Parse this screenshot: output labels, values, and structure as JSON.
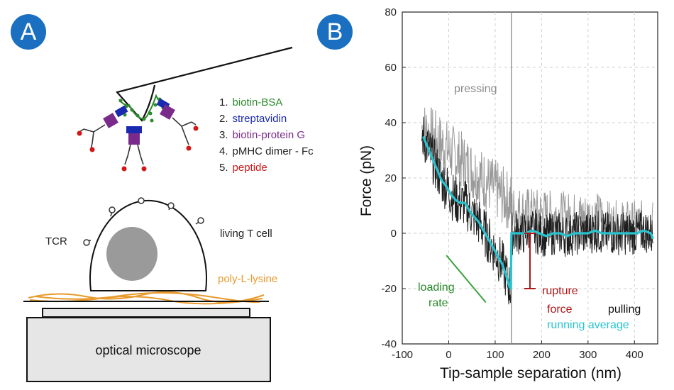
{
  "panels": {
    "a": "A",
    "b": "B"
  },
  "legend": {
    "items": [
      {
        "num": "1.",
        "text": "biotin-BSA",
        "color": "#2b8a2b"
      },
      {
        "num": "2.",
        "text": "streptavidin",
        "color": "#1a2ab0"
      },
      {
        "num": "3.",
        "text": "biotin-protein G",
        "color": "#7a2a8a"
      },
      {
        "num": "4.",
        "text": "pMHC dimer - Fc",
        "color": "#222222"
      },
      {
        "num": "5.",
        "text": "peptide",
        "color": "#d01818"
      }
    ]
  },
  "labels": {
    "tcr": "TCR",
    "cell": "living T cell",
    "polylysine": "poly-L-lysine",
    "microscope": "optical microscope"
  },
  "colors": {
    "badge": "#1a6fc0",
    "polylysine": "#e89a2c",
    "nucleus": "#9a9a9a",
    "running_average": "#27c4d0",
    "loading_rate": "#3aa33a",
    "rupture": "#b01818",
    "pressing": "#8a8a8a",
    "pulling": "#111111"
  },
  "chart_data": {
    "type": "line",
    "xlabel": "Tip-sample separation (nm)",
    "ylabel": "Force (pN)",
    "xlim": [
      -100,
      450
    ],
    "ylim": [
      -40,
      80
    ],
    "xticks": [
      -100,
      0,
      100,
      200,
      300,
      400
    ],
    "yticks": [
      -40,
      -20,
      0,
      20,
      40,
      60,
      80
    ],
    "grid": true,
    "contact_x": 135,
    "annotations": {
      "pressing": "pressing",
      "loading_rate_1": "loading",
      "loading_rate_2": "rate",
      "rupture_1": "rupture",
      "rupture_2": "force",
      "pulling": "pulling",
      "running_average": "running average"
    },
    "loading_rate_line": {
      "x": [
        -5,
        80
      ],
      "y": [
        -8,
        -25
      ]
    },
    "rupture_bar": {
      "x": 175,
      "y_top": 0,
      "y_bottom": -20
    },
    "series": [
      {
        "name": "running average",
        "x": [
          -55,
          -45,
          -35,
          -25,
          -15,
          -5,
          5,
          15,
          25,
          35,
          45,
          55,
          65,
          75,
          85,
          95,
          105,
          115,
          125,
          130,
          134,
          135,
          150,
          165,
          180,
          195,
          210,
          225,
          240,
          255,
          270,
          285,
          300,
          315,
          330,
          345,
          360,
          375,
          390,
          405,
          420,
          435,
          440
        ],
        "y": [
          35,
          31,
          27,
          23,
          19,
          17,
          14,
          12,
          11,
          11,
          8,
          6,
          4,
          1,
          -2,
          -5,
          -8,
          -11,
          -16,
          -19,
          -20,
          0,
          0,
          0,
          1,
          0,
          -1,
          0,
          0,
          -1,
          0,
          0,
          0,
          1,
          0,
          0,
          0,
          0,
          0,
          0,
          1,
          0,
          -2
        ]
      }
    ]
  }
}
